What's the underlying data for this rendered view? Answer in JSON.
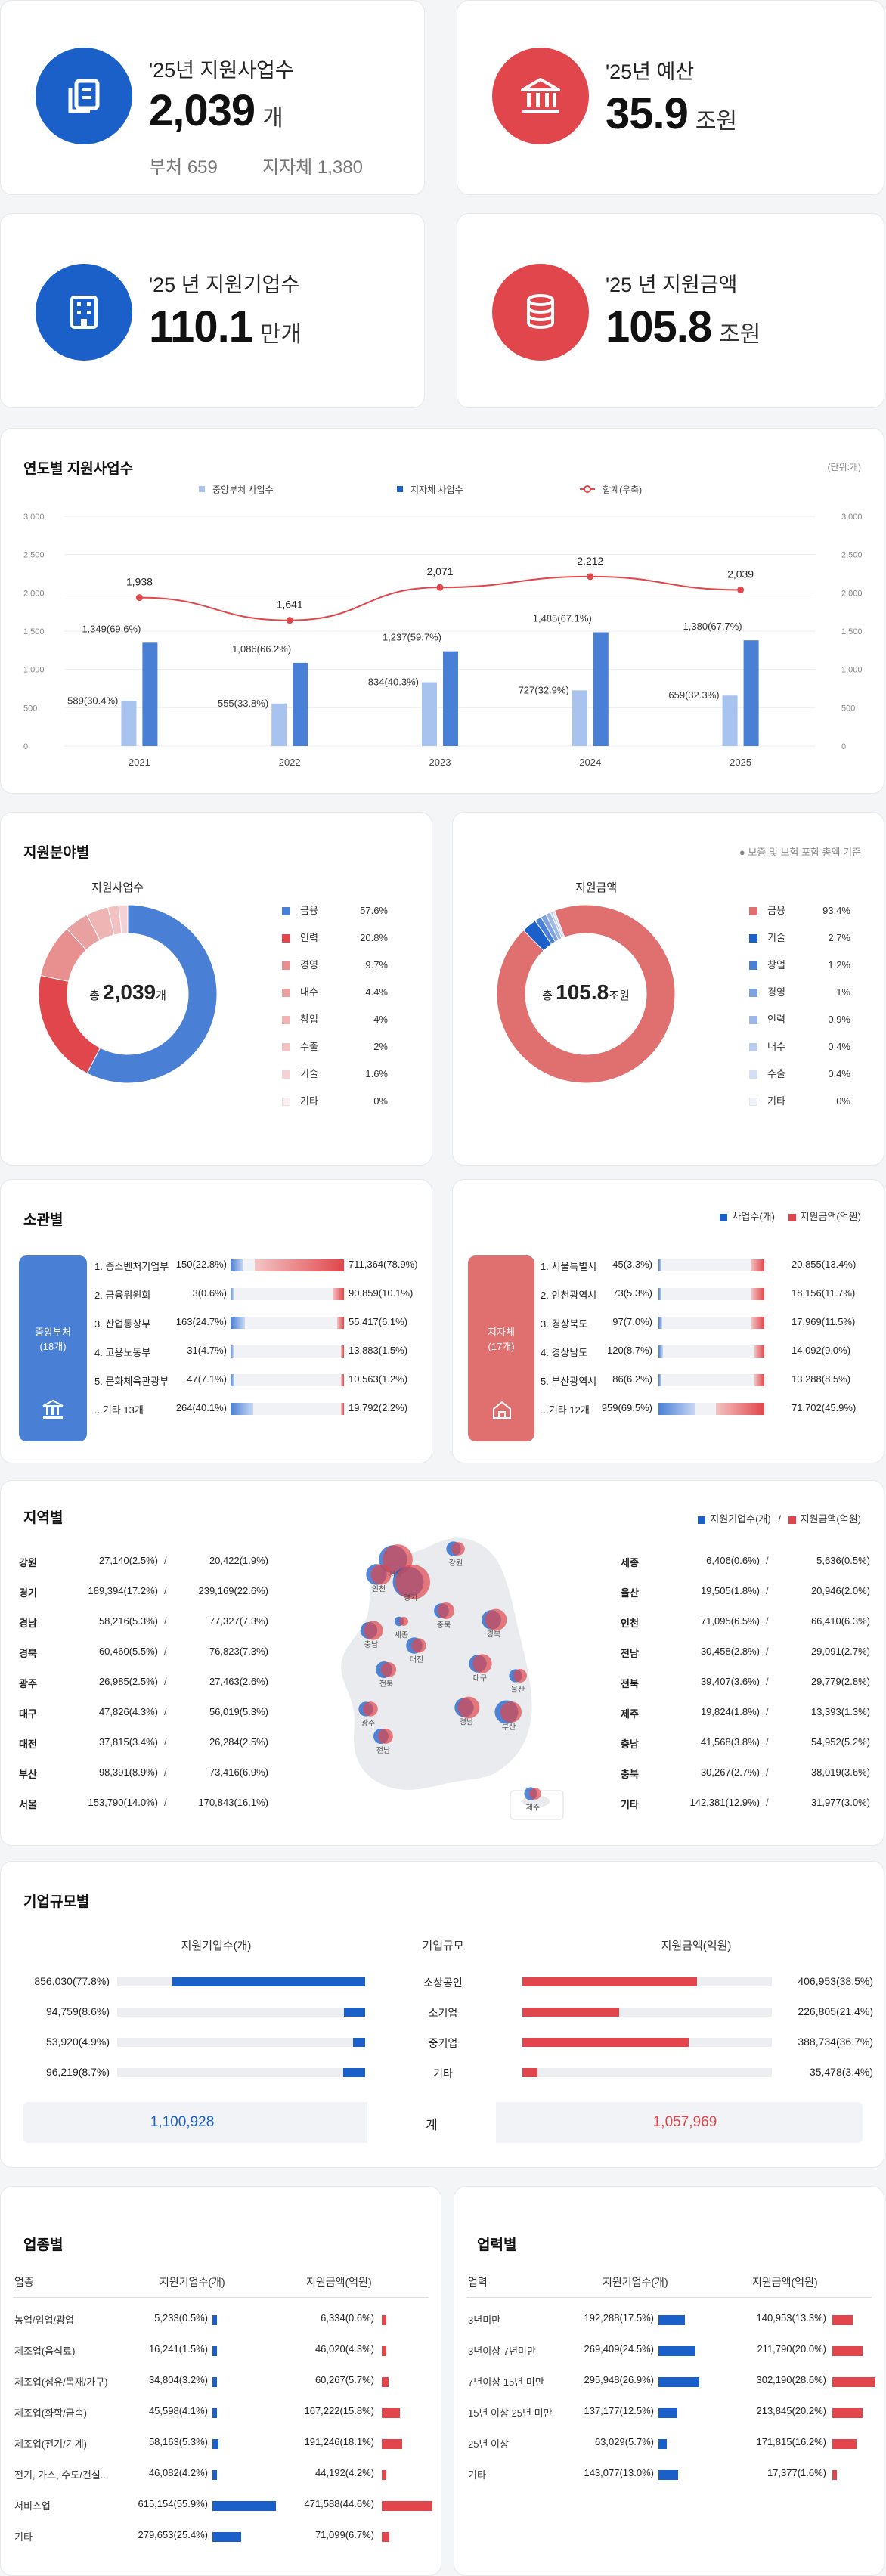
{
  "kpis": [
    {
      "label": "'25년 지원사업수",
      "value": "2,039",
      "unit": "개",
      "sub1": "부처 659",
      "sub2": "지자체 1,380",
      "icon": "document-icon",
      "color": "#1b5fc9"
    },
    {
      "label": "'25년 예산",
      "value": "35.9",
      "unit": "조원",
      "icon": "bank-icon",
      "color": "#e0464b"
    },
    {
      "label": "'25 년 지원기업수",
      "value": "110.1",
      "unit": "만개",
      "icon": "building-icon",
      "color": "#1b5fc9"
    },
    {
      "label": "'25 년 지원금액",
      "value": "105.8",
      "unit": "조원",
      "icon": "coins-icon",
      "color": "#e0464b"
    }
  ],
  "yearly": {
    "title": "연도별 지원사업수",
    "unit": "(단위:개)",
    "legend": [
      "중앙부처 사업수",
      "지자체 사업수",
      "합계(우축)"
    ],
    "yticks": [
      "3,000",
      "2,500",
      "2,000",
      "1,500",
      "1,000",
      "500",
      "0"
    ],
    "labels_central": [
      "589(30.4%)",
      "555(33.8%)",
      "834(40.3%)",
      "727(32.9%)",
      "659(32.3%)"
    ],
    "labels_local": [
      "1,349(69.6%)",
      "1,086(66.2%)",
      "1,237(59.7%)",
      "1,485(67.1%)",
      "1,380(67.7%)"
    ],
    "labels_total": [
      "1,938",
      "1,641",
      "2,071",
      "2,212",
      "2,039"
    ]
  },
  "chart_data": [
    {
      "type": "bar",
      "title": "연도별 지원사业수",
      "categories": [
        "2021",
        "2022",
        "2023",
        "2024",
        "2025"
      ],
      "series": [
        {
          "name": "중앙부처 사업수",
          "values": [
            589,
            555,
            834,
            727,
            659
          ]
        },
        {
          "name": "지자체 사업수",
          "values": [
            1349,
            1086,
            1237,
            1485,
            1380
          ]
        },
        {
          "name": "합계(우축)",
          "type": "line",
          "values": [
            1938,
            1641,
            2071,
            2212,
            2039
          ]
        }
      ],
      "ylim": [
        0,
        3000
      ],
      "ylabel": "",
      "xlabel": "",
      "grid": true,
      "legend": "top"
    },
    {
      "type": "pie",
      "title": "지원사업수",
      "categories": [
        "금융",
        "인력",
        "경영",
        "내수",
        "창업",
        "수출",
        "기술",
        "기타"
      ],
      "values": [
        57.6,
        20.8,
        9.7,
        4.4,
        4,
        2,
        1.6,
        0
      ]
    },
    {
      "type": "pie",
      "title": "지원금액",
      "categories": [
        "금융",
        "기술",
        "창업",
        "경영",
        "인력",
        "내수",
        "수출",
        "기타"
      ],
      "values": [
        93.4,
        2.7,
        1.2,
        1,
        0.9,
        0.4,
        0.4,
        0
      ]
    }
  ],
  "field": {
    "title": "지원분야별",
    "note": "● 보증 및 보험 포함 총액 기준",
    "left_title": "지원사업수",
    "left_center_pre": "총",
    "left_center_val": "2,039",
    "left_center_unit": "개",
    "right_title": "지원금액",
    "right_center_pre": "총",
    "right_center_val": "105.8",
    "right_center_unit": "조원",
    "left_legend": [
      [
        "금융",
        "57.6%",
        "#4a7fd6"
      ],
      [
        "인력",
        "20.8%",
        "#e0464b"
      ],
      [
        "경영",
        "9.7%",
        "#e88f8f"
      ],
      [
        "내수",
        "4.4%",
        "#e8a0a0"
      ],
      [
        "창업",
        "4%",
        "#efb4b4"
      ],
      [
        "수출",
        "2%",
        "#f2c2c2"
      ],
      [
        "기술",
        "1.6%",
        "#f5d0d4"
      ],
      [
        "기타",
        "0%",
        "#fbeeee"
      ]
    ],
    "right_legend": [
      [
        "금융",
        "93.4%",
        "#e07070"
      ],
      [
        "기술",
        "2.7%",
        "#1b5fc9"
      ],
      [
        "창업",
        "1.2%",
        "#4a7fd6"
      ],
      [
        "경영",
        "1%",
        "#7ea2e0"
      ],
      [
        "인력",
        "0.9%",
        "#9db8e8"
      ],
      [
        "내수",
        "0.4%",
        "#b9cbee"
      ],
      [
        "수출",
        "0.4%",
        "#d3dff5"
      ],
      [
        "기타",
        "0%",
        "#eef2fb"
      ]
    ]
  },
  "agency": {
    "title": "소관별",
    "legend": [
      "사업수(개)",
      "지원금액(억원)"
    ],
    "central_label": "중앙부처\n(18개)",
    "local_label": "지자체\n(17개)",
    "central": [
      [
        "1. 중소벤처기업부",
        "150(22.8%)",
        "711,364(78.9%)",
        0.23,
        0.79
      ],
      [
        "2. 금융위원회",
        "3(0.6%)",
        "90,859(10.1%)",
        0.01,
        0.1
      ],
      [
        "3. 산업통상부",
        "163(24.7%)",
        "55,417(6.1%)",
        0.25,
        0.06
      ],
      [
        "4. 고용노동부",
        "31(4.7%)",
        "13,883(1.5%)",
        0.05,
        0.02
      ],
      [
        "5. 문화체육관광부",
        "47(7.1%)",
        "10,563(1.2%)",
        0.07,
        0.01
      ],
      [
        "...기타 13개",
        "264(40.1%)",
        "19,792(2.2%)",
        0.4,
        0.02
      ]
    ],
    "local": [
      [
        "1. 서울특별시",
        "45(3.3%)",
        "20,855(13.4%)",
        0.03,
        0.13
      ],
      [
        "2. 인천광역시",
        "73(5.3%)",
        "18,156(11.7%)",
        0.05,
        0.12
      ],
      [
        "3. 경상북도",
        "97(7.0%)",
        "17,969(11.5%)",
        0.07,
        0.12
      ],
      [
        "4. 경상남도",
        "120(8.7%)",
        "14,092(9.0%)",
        0.09,
        0.09
      ],
      [
        "5. 부산광역시",
        "86(6.2%)",
        "13,288(8.5%)",
        0.06,
        0.09
      ],
      [
        "...기타 12개",
        "959(69.5%)",
        "71,702(45.9%)",
        0.7,
        0.46
      ]
    ]
  },
  "region": {
    "title": "지역별",
    "legend": [
      "지원기업수(개)",
      "지원금액(억원)"
    ],
    "left": [
      [
        "강원",
        "27,140(2.5%)",
        "20,422(1.9%)"
      ],
      [
        "경기",
        "189,394(17.2%)",
        "239,169(22.6%)"
      ],
      [
        "경남",
        "58,216(5.3%)",
        "77,327(7.3%)"
      ],
      [
        "경북",
        "60,460(5.5%)",
        "76,823(7.3%)"
      ],
      [
        "광주",
        "26,985(2.5%)",
        "27,463(2.6%)"
      ],
      [
        "대구",
        "47,826(4.3%)",
        "56,019(5.3%)"
      ],
      [
        "대전",
        "37,815(3.4%)",
        "26,284(2.5%)"
      ],
      [
        "부산",
        "98,391(8.9%)",
        "73,416(6.9%)"
      ],
      [
        "서울",
        "153,790(14.0%)",
        "170,843(16.1%)"
      ]
    ],
    "right": [
      [
        "세종",
        "6,406(0.6%)",
        "5,636(0.5%)"
      ],
      [
        "울산",
        "19,505(1.8%)",
        "20,946(2.0%)"
      ],
      [
        "인천",
        "71,095(6.5%)",
        "66,410(6.3%)"
      ],
      [
        "전남",
        "30,458(2.8%)",
        "29,091(2.7%)"
      ],
      [
        "전북",
        "39,407(3.6%)",
        "29,779(2.8%)"
      ],
      [
        "제주",
        "19,824(1.8%)",
        "13,393(1.3%)"
      ],
      [
        "충남",
        "41,568(3.8%)",
        "54,952(5.2%)"
      ],
      [
        "충북",
        "30,267(2.7%)",
        "38,019(3.6%)"
      ],
      [
        "기타",
        "142,381(12.9%)",
        "31,977(3.0%)"
      ]
    ],
    "map_labels": [
      "강원",
      "서울",
      "인천",
      "경기",
      "충북",
      "세종",
      "충남",
      "경북",
      "대전",
      "대구",
      "전북",
      "울산",
      "경남",
      "부산",
      "광주",
      "전남",
      "제주"
    ]
  },
  "size": {
    "title": "기업규모별",
    "col_left": "지원기업수(개)",
    "col_mid": "기업규모",
    "col_right": "지원금액(억원)",
    "rows": [
      [
        "856,030(77.8%)",
        "소상공인",
        "406,953(38.5%)",
        0.778,
        0.385
      ],
      [
        "94,759(8.6%)",
        "소기업",
        "226,805(21.4%)",
        0.086,
        0.214
      ],
      [
        "53,920(4.9%)",
        "중기업",
        "388,734(36.7%)",
        0.049,
        0.367
      ],
      [
        "96,219(8.7%)",
        "기타",
        "35,478(3.4%)",
        0.087,
        0.034
      ]
    ],
    "total_left": "1,100,928",
    "total_mid": "계",
    "total_right": "1,057,969"
  },
  "industry": {
    "title": "업종별",
    "h1": "업종",
    "h2": "지원기업수(개)",
    "h3": "지원금액(억원)",
    "rows": [
      [
        "농업/임업/광업",
        "5,233(0.5%)",
        "6,334(0.6%)",
        0.005,
        0.006
      ],
      [
        "제조업(음식료)",
        "16,241(1.5%)",
        "46,020(4.3%)",
        0.015,
        0.043
      ],
      [
        "제조업(섬유/목재/가구)",
        "34,804(3.2%)",
        "60,267(5.7%)",
        0.032,
        0.057
      ],
      [
        "제조업(화학/금속)",
        "45,598(4.1%)",
        "167,222(15.8%)",
        0.041,
        0.158
      ],
      [
        "제조업(전기/기계)",
        "58,163(5.3%)",
        "191,246(18.1%)",
        0.053,
        0.181
      ],
      [
        "전기, 가스, 수도/건설...",
        "46,082(4.2%)",
        "44,192(4.2%)",
        0.042,
        0.042
      ],
      [
        "서비스업",
        "615,154(55.9%)",
        "471,588(44.6%)",
        0.559,
        0.446
      ],
      [
        "기타",
        "279,653(25.4%)",
        "71,099(6.7%)",
        0.254,
        0.067
      ]
    ]
  },
  "career": {
    "title": "업력별",
    "h1": "업력",
    "h2": "지원기업수(개)",
    "h3": "지원금액(억원)",
    "rows": [
      [
        "3년미만",
        "192,288(17.5%)",
        "140,953(13.3%)",
        0.175,
        0.133
      ],
      [
        "3년이상 7년미만",
        "269,409(24.5%)",
        "211,790(20.0%)",
        0.245,
        0.2
      ],
      [
        "7년이상 15년 미만",
        "295,948(26.9%)",
        "302,190(28.6%)",
        0.269,
        0.286
      ],
      [
        "15년 이상 25년 미만",
        "137,177(12.5%)",
        "213,845(20.2%)",
        0.125,
        0.202
      ],
      [
        "25년 이상",
        "63,029(5.7%)",
        "171,815(16.2%)",
        0.057,
        0.162
      ],
      [
        "기타",
        "143,077(13.0%)",
        "17,377(1.6%)",
        0.13,
        0.016
      ]
    ]
  }
}
